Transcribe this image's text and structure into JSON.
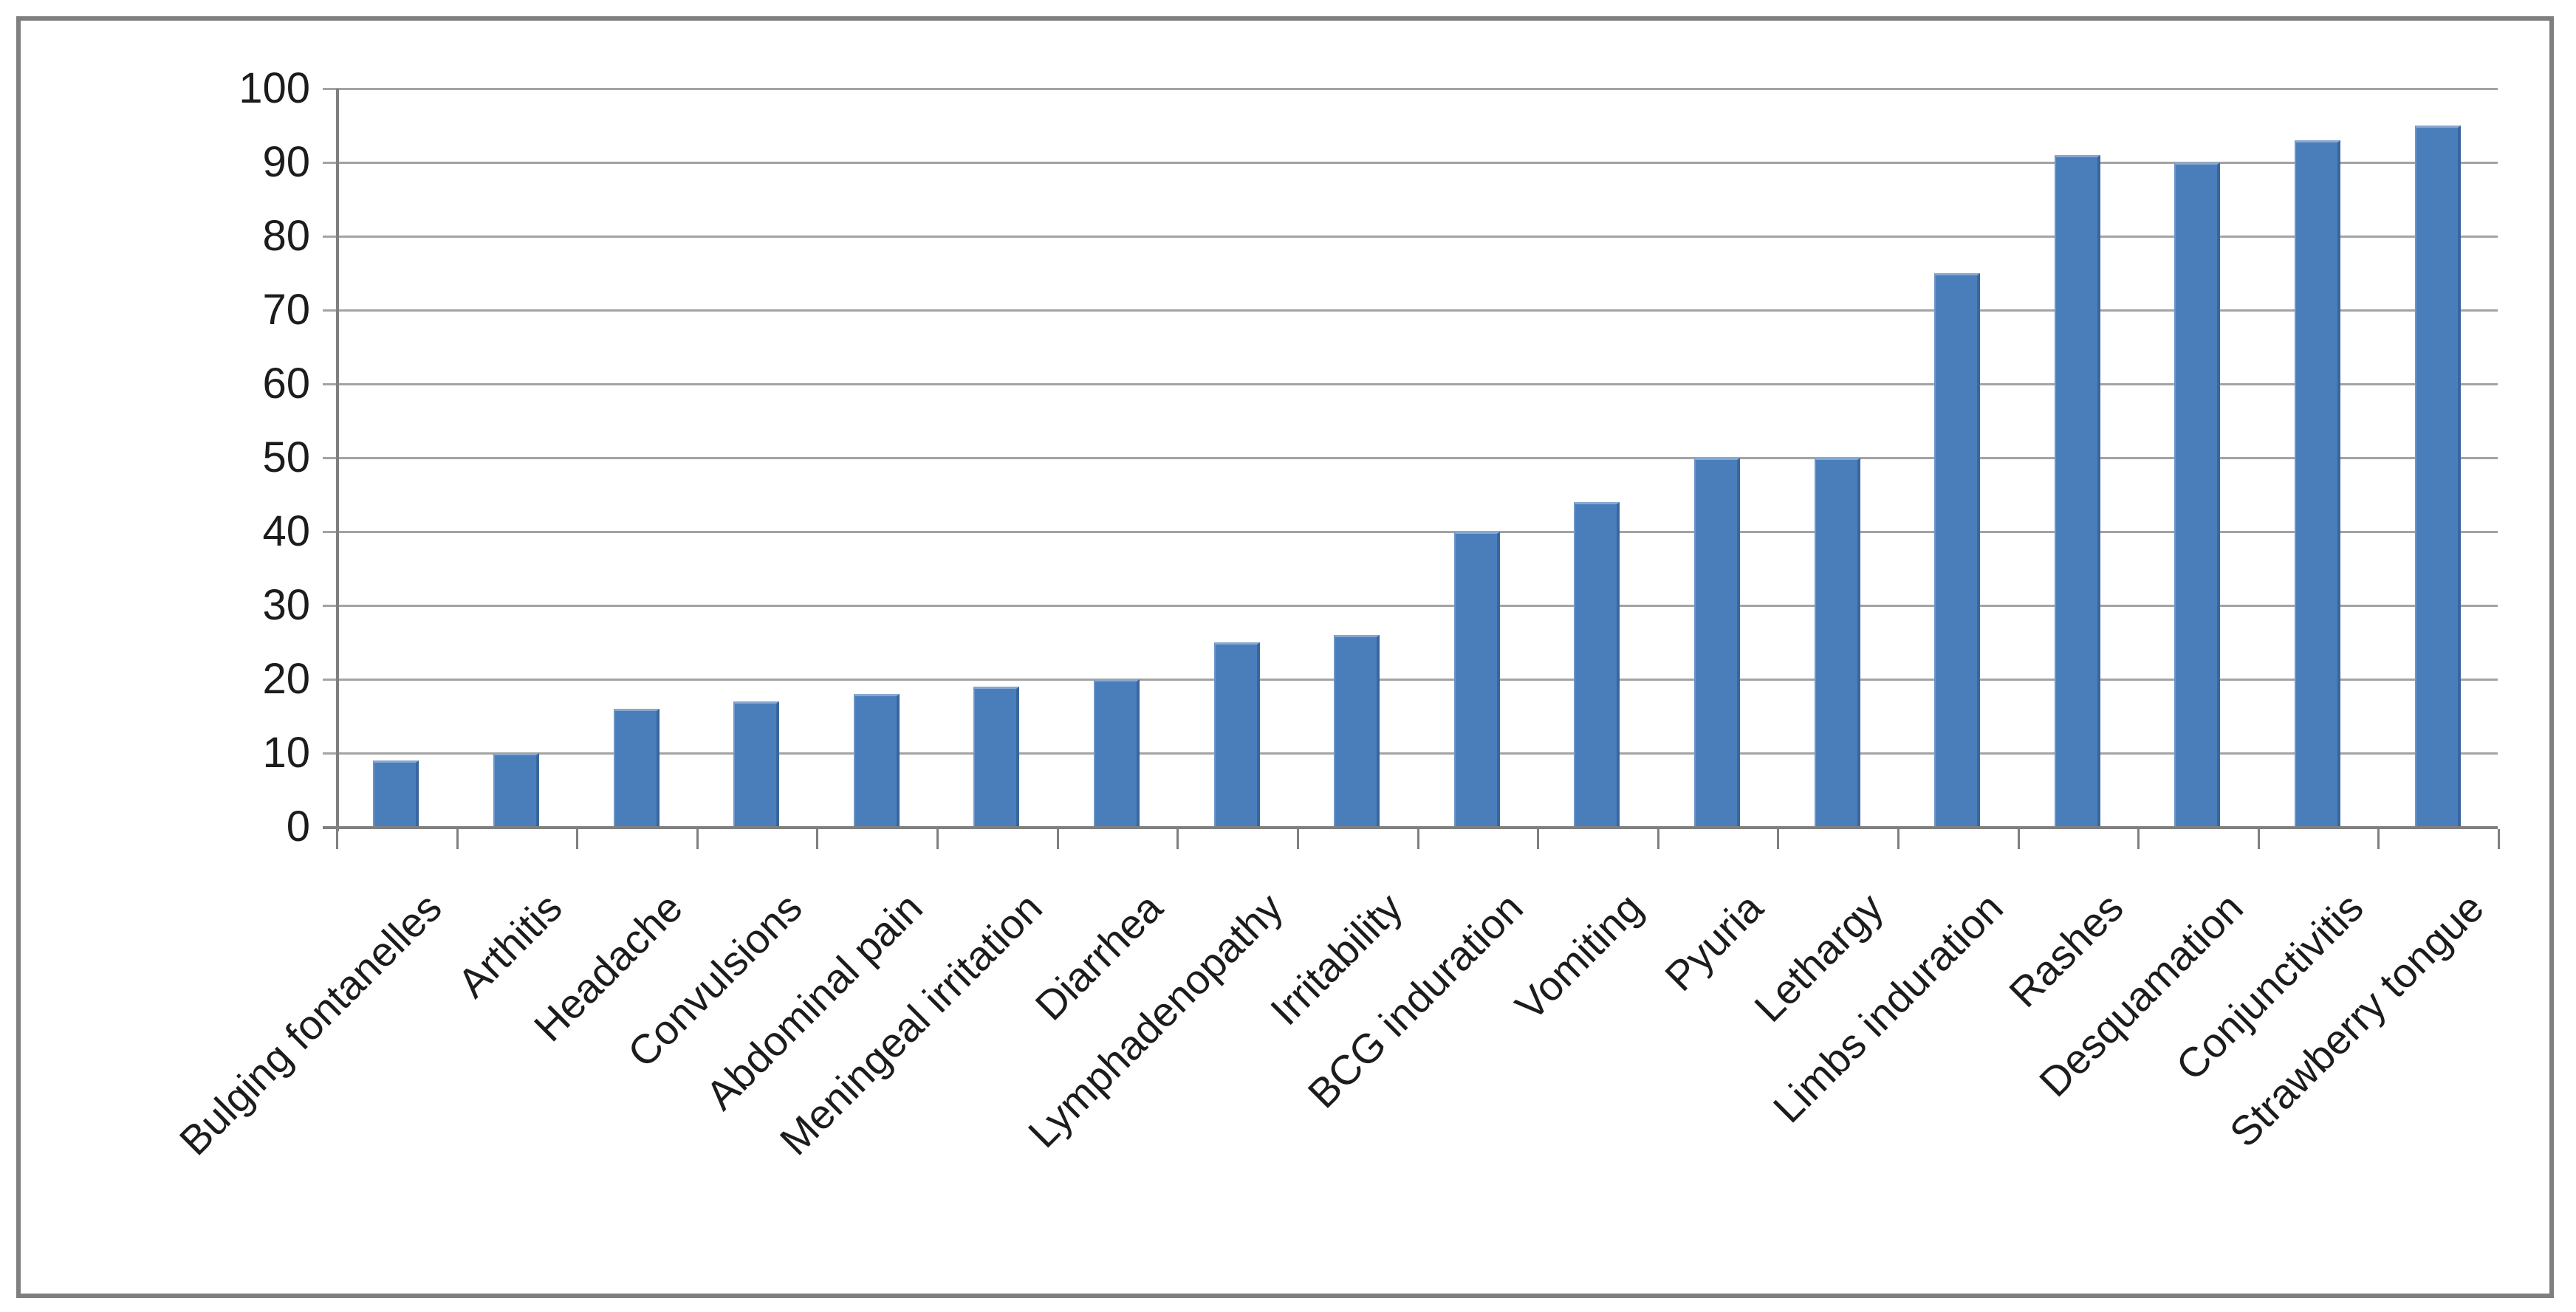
{
  "chart_data": {
    "type": "bar",
    "title": "",
    "xlabel": "",
    "ylabel": "",
    "categories": [
      "Bulging fontanelles",
      "Arthitis",
      "Headache",
      "Convulsions",
      "Abdominal pain",
      "Meningeal irritation",
      "Diarrhea",
      "Lymphadenopathy",
      "Irritability",
      "BCG induration",
      "Vomiting",
      "Pyuria",
      "Lethargy",
      "Limbs induration",
      "Rashes",
      "Desquamation",
      "Conjunctivitis",
      "Strawberry tongue"
    ],
    "values": [
      9,
      10,
      16,
      17,
      18,
      19,
      20,
      25,
      26,
      40,
      44,
      50,
      50,
      75,
      91,
      90,
      93,
      95
    ],
    "ylim": [
      0,
      100
    ],
    "ytick_step": 10,
    "ytick_labels": [
      "0",
      "10",
      "20",
      "30",
      "40",
      "50",
      "60",
      "70",
      "80",
      "90",
      "100"
    ],
    "grid": "horizontal",
    "legend": "none",
    "colors": {
      "bar_fill": "#4A7EBB",
      "bar_edge_highlight": "#86A8D3",
      "bar_edge_shadow": "#38669F",
      "gridline": "#A3A3A3",
      "axis_line": "#7F7F7F",
      "frame_border": "#7F7F7F",
      "text": "#1C1C1C",
      "background": "#FFFFFF"
    }
  }
}
